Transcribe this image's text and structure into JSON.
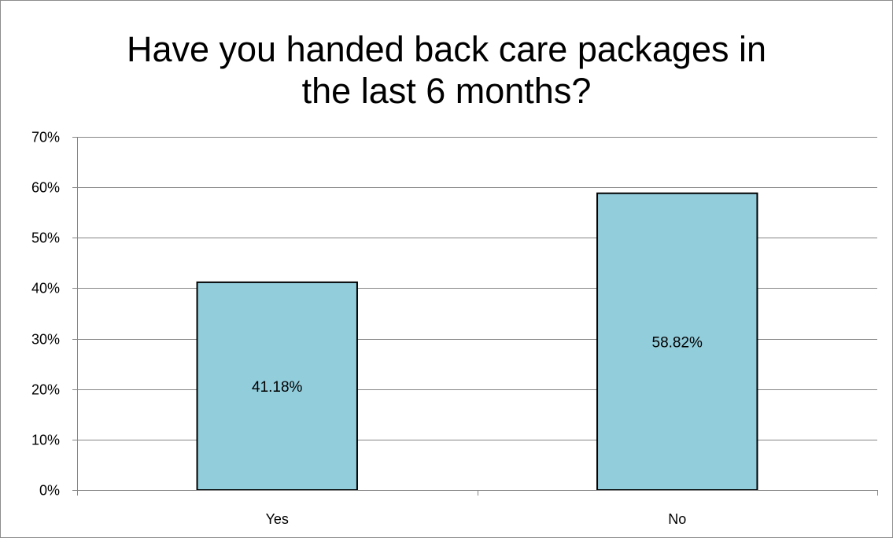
{
  "chart_data": {
    "type": "bar",
    "title": "Have you handed back care packages in the last 6 months?",
    "title_lines": [
      "Have you handed back care packages in",
      "the last 6 months?"
    ],
    "categories": [
      "Yes",
      "No"
    ],
    "values": [
      41.18,
      58.82
    ],
    "data_labels": [
      "41.18%",
      "58.82%"
    ],
    "ylim": [
      0,
      70
    ],
    "y_ticks": [
      0,
      10,
      20,
      30,
      40,
      50,
      60,
      70
    ],
    "y_tick_labels": [
      "0%",
      "10%",
      "20%",
      "30%",
      "40%",
      "50%",
      "60%",
      "70%"
    ],
    "xlabel": "",
    "ylabel": "",
    "grid": true,
    "legend": "none",
    "colors": {
      "bar_fill": "#92cddc",
      "bar_stroke": "#000000",
      "grid": "#868686",
      "axis": "#868686"
    }
  }
}
